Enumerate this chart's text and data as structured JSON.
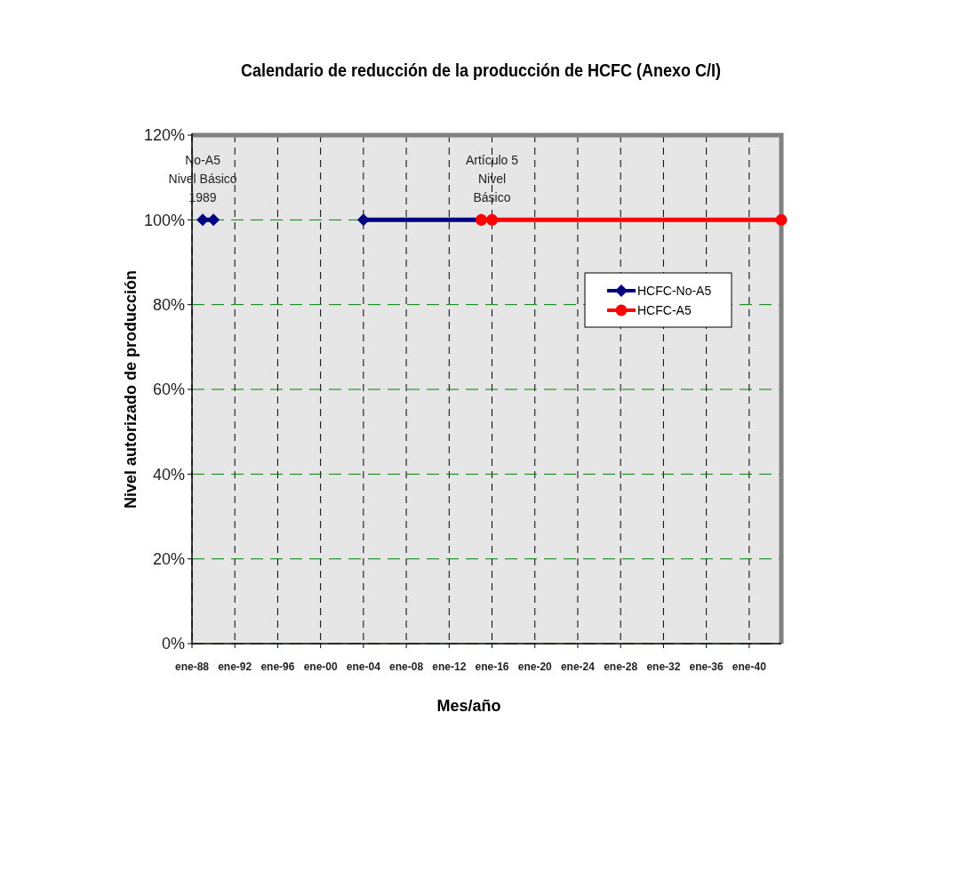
{
  "chart_data": {
    "type": "line",
    "title": "Calendario de reducción de la producción de HCFC (Anexo C/I)",
    "xlabel": "Mes/año",
    "ylabel": "Nivel autorizado de producción",
    "xlim": [
      "1988-01",
      "2043-01"
    ],
    "xticks": [
      {
        "value": "1988-01",
        "label": "ene-88"
      },
      {
        "value": "1992-01",
        "label": "ene-92"
      },
      {
        "value": "1996-01",
        "label": "ene-96"
      },
      {
        "value": "2000-01",
        "label": "ene-00"
      },
      {
        "value": "2004-01",
        "label": "ene-04"
      },
      {
        "value": "2008-01",
        "label": "ene-08"
      },
      {
        "value": "2012-01",
        "label": "ene-12"
      },
      {
        "value": "2016-01",
        "label": "ene-16"
      },
      {
        "value": "2020-01",
        "label": "ene-20"
      },
      {
        "value": "2024-01",
        "label": "ene-24"
      },
      {
        "value": "2028-01",
        "label": "ene-28"
      },
      {
        "value": "2032-01",
        "label": "ene-32"
      },
      {
        "value": "2036-01",
        "label": "ene-36"
      },
      {
        "value": "2040-01",
        "label": "ene-40"
      }
    ],
    "ylim": [
      0,
      120
    ],
    "yticks": [
      {
        "value": 0,
        "label": "0%"
      },
      {
        "value": 20,
        "label": "20%"
      },
      {
        "value": 40,
        "label": "40%"
      },
      {
        "value": 60,
        "label": "60%"
      },
      {
        "value": 80,
        "label": "80%"
      },
      {
        "value": 100,
        "label": "100%"
      },
      {
        "value": 120,
        "label": "120%"
      }
    ],
    "grid": true,
    "legend": "right",
    "series": [
      {
        "name": "HCFC-No-A5",
        "color": "#000080",
        "marker": "diamond",
        "x": [
          "1989-01",
          "1990-01",
          "1997-01",
          "2004-01",
          "2015-01"
        ],
        "values": [
          100,
          100,
          null,
          100,
          100
        ]
      },
      {
        "name": "HCFC-A5",
        "color": "#ff0000",
        "marker": "circle",
        "x": [
          "2015-01",
          "2016-01",
          "2043-01"
        ],
        "values": [
          100,
          100,
          100
        ]
      }
    ],
    "annotations": [
      {
        "text": "No-A5\nNivel Básico\n1989",
        "x": "1989-01",
        "y": 100
      },
      {
        "text": "Artículo 5\nNivel\nBásico",
        "x": "2016-01",
        "y": 100
      }
    ]
  }
}
